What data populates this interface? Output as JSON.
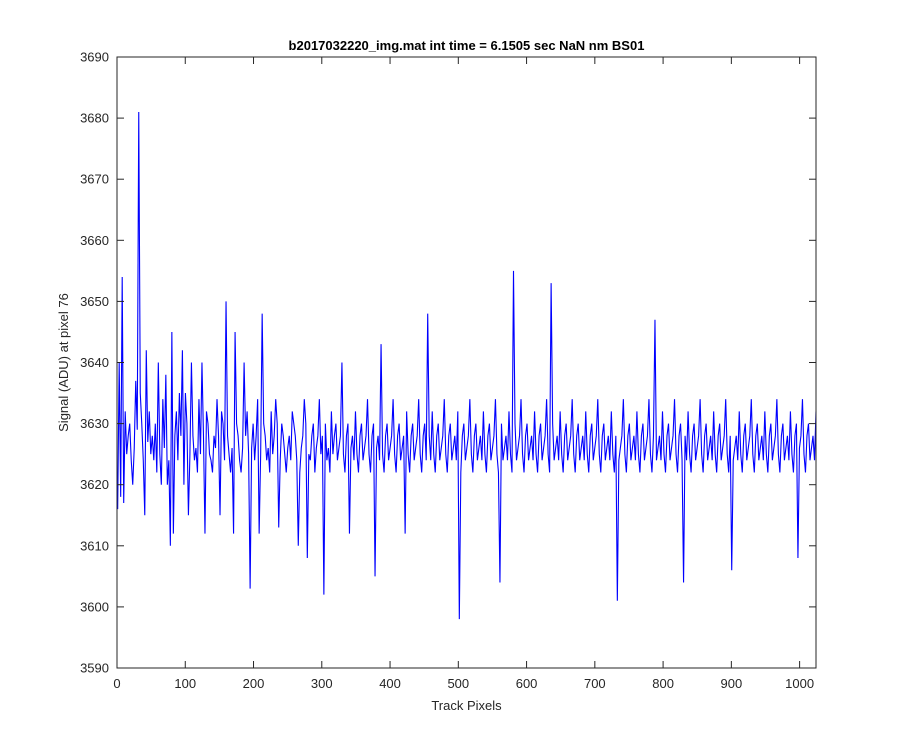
{
  "chart_data": {
    "type": "line",
    "title": "b2017032220_img.mat int time = 6.1505 sec  NaN nm BS01",
    "xlabel": "Track Pixels",
    "ylabel": "Signal (ADU) at pixel 76",
    "xlim": [
      0,
      1024
    ],
    "ylim": [
      3590,
      3690
    ],
    "xticks": [
      "0",
      "100",
      "200",
      "300",
      "400",
      "500",
      "600",
      "700",
      "800",
      "900",
      "1000"
    ],
    "yticks": [
      "3590",
      "3600",
      "3610",
      "3620",
      "3630",
      "3640",
      "3650",
      "3660",
      "3670",
      "3680",
      "3690"
    ],
    "grid": false,
    "legend": "none",
    "series_color": "#0000ff",
    "series": [
      {
        "values": [
          3616,
          3640,
          3618,
          3654,
          3617,
          3632,
          3625,
          3628,
          3630,
          3624,
          3620,
          3626,
          3637,
          3629,
          3681,
          3635,
          3630,
          3624,
          3615,
          3642,
          3627,
          3632,
          3625,
          3628,
          3624,
          3630,
          3622,
          3640,
          3625,
          3620,
          3634,
          3626,
          3638,
          3620,
          3624,
          3610,
          3645,
          3612,
          3628,
          3632,
          3624,
          3635,
          3628,
          3642,
          3620,
          3635,
          3630,
          3615,
          3625,
          3640,
          3628,
          3624,
          3626,
          3622,
          3634,
          3625,
          3640,
          3628,
          3612,
          3632,
          3630,
          3625,
          3624,
          3622,
          3628,
          3626,
          3634,
          3628,
          3615,
          3632,
          3630,
          3624,
          3650,
          3628,
          3625,
          3622,
          3626,
          3612,
          3645,
          3630,
          3628,
          3624,
          3622,
          3626,
          3640,
          3628,
          3632,
          3625,
          3603,
          3626,
          3630,
          3624,
          3628,
          3634,
          3612,
          3625,
          3648,
          3630,
          3628,
          3624,
          3626,
          3622,
          3632,
          3625,
          3628,
          3634,
          3630,
          3613,
          3624,
          3630,
          3628,
          3625,
          3622,
          3626,
          3628,
          3624,
          3632,
          3630,
          3628,
          3624,
          3610,
          3622,
          3626,
          3628,
          3634,
          3630,
          3608,
          3625,
          3624,
          3628,
          3630,
          3622,
          3626,
          3628,
          3634,
          3625,
          3628,
          3602,
          3630,
          3624,
          3626,
          3622,
          3632,
          3625,
          3628,
          3630,
          3624,
          3626,
          3628,
          3640,
          3625,
          3622,
          3628,
          3630,
          3612,
          3626,
          3628,
          3624,
          3632,
          3625,
          3622,
          3628,
          3630,
          3624,
          3626,
          3628,
          3634,
          3625,
          3622,
          3628,
          3630,
          3605,
          3626,
          3628,
          3624,
          3643,
          3625,
          3622,
          3628,
          3630,
          3624,
          3626,
          3628,
          3634,
          3625,
          3622,
          3628,
          3630,
          3624,
          3626,
          3628,
          3612,
          3632,
          3625,
          3622,
          3628,
          3630,
          3624,
          3626,
          3628,
          3634,
          3625,
          3622,
          3628,
          3630,
          3624,
          3648,
          3628,
          3624,
          3632,
          3625,
          3622,
          3628,
          3630,
          3624,
          3626,
          3628,
          3634,
          3625,
          3622,
          3628,
          3630,
          3624,
          3626,
          3628,
          3624,
          3632,
          3598,
          3622,
          3628,
          3630,
          3624,
          3626,
          3628,
          3634,
          3625,
          3622,
          3628,
          3630,
          3624,
          3626,
          3628,
          3624,
          3632,
          3625,
          3622,
          3628,
          3630,
          3624,
          3626,
          3628,
          3634,
          3625,
          3622,
          3604,
          3630,
          3624,
          3626,
          3628,
          3624,
          3632,
          3625,
          3622,
          3655,
          3630,
          3624,
          3626,
          3628,
          3634,
          3625,
          3622,
          3628,
          3630,
          3624,
          3626,
          3628,
          3624,
          3632,
          3625,
          3622,
          3628,
          3630,
          3624,
          3626,
          3628,
          3634,
          3625,
          3622,
          3653,
          3630,
          3624,
          3626,
          3628,
          3624,
          3632,
          3625,
          3622,
          3628,
          3630,
          3624,
          3626,
          3628,
          3634,
          3625,
          3622,
          3628,
          3630,
          3624,
          3626,
          3628,
          3624,
          3632,
          3625,
          3622,
          3628,
          3630,
          3624,
          3626,
          3628,
          3634,
          3625,
          3622,
          3628,
          3630,
          3624,
          3626,
          3628,
          3624,
          3632,
          3625,
          3622,
          3628,
          3601,
          3624,
          3626,
          3628,
          3634,
          3625,
          3622,
          3628,
          3630,
          3624,
          3626,
          3628,
          3624,
          3632,
          3625,
          3622,
          3628,
          3630,
          3624,
          3626,
          3628,
          3634,
          3625,
          3622,
          3628,
          3647,
          3624,
          3626,
          3628,
          3624,
          3632,
          3625,
          3622,
          3628,
          3630,
          3624,
          3626,
          3628,
          3634,
          3625,
          3622,
          3628,
          3630,
          3624,
          3604,
          3628,
          3624,
          3632,
          3625,
          3622,
          3628,
          3630,
          3624,
          3626,
          3628,
          3634,
          3625,
          3622,
          3628,
          3630,
          3624,
          3626,
          3628,
          3624,
          3632,
          3625,
          3622,
          3628,
          3630,
          3624,
          3626,
          3628,
          3634,
          3625,
          3622,
          3628,
          3606,
          3624,
          3626,
          3628,
          3624,
          3632,
          3625,
          3622,
          3628,
          3630,
          3624,
          3626,
          3628,
          3634,
          3625,
          3622,
          3628,
          3630,
          3624,
          3626,
          3628,
          3624,
          3632,
          3625,
          3622,
          3628,
          3630,
          3624,
          3626,
          3628,
          3634,
          3625,
          3622,
          3628,
          3630,
          3624,
          3626,
          3628,
          3624,
          3632,
          3625,
          3622,
          3628,
          3630,
          3608,
          3626,
          3628,
          3634,
          3625,
          3622,
          3628,
          3630,
          3624,
          3626,
          3628,
          3624,
          3632
        ],
        "note": "approximate reconstruction of noisy trace read from the plot; representative sampling across pixels 1-1024"
      }
    ]
  }
}
